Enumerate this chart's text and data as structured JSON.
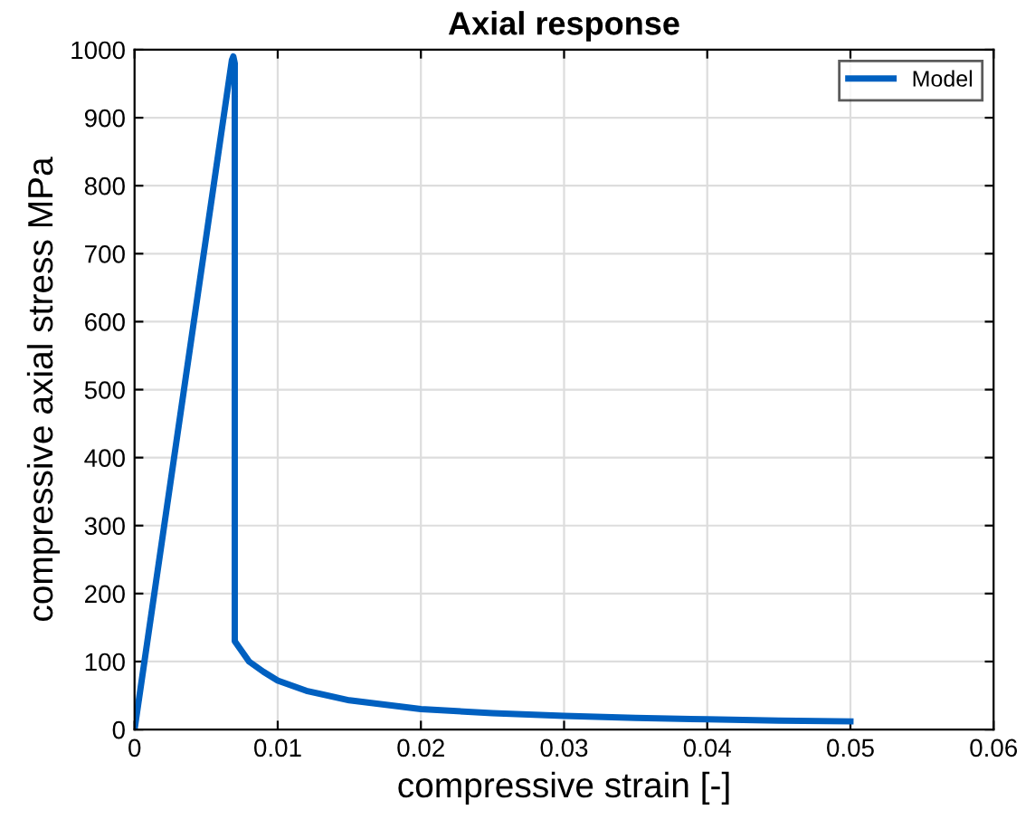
{
  "chart_data": {
    "type": "line",
    "title": "Axial response",
    "xlabel": "compressive strain [-]",
    "ylabel": "compressive axial stress MPa",
    "xlim": [
      0,
      0.06
    ],
    "ylim": [
      0,
      1000
    ],
    "xticks": [
      0,
      0.01,
      0.02,
      0.03,
      0.04,
      0.05,
      0.06
    ],
    "yticks": [
      0,
      100,
      200,
      300,
      400,
      500,
      600,
      700,
      800,
      900,
      1000
    ],
    "grid": true,
    "legend": "top right",
    "line_style": "solid",
    "marker": "none",
    "series": [
      {
        "name": "Model",
        "color": "#0060c0",
        "x": [
          0,
          0.0068,
          0.0069,
          0.007,
          0.007,
          0.0075,
          0.008,
          0.009,
          0.01,
          0.012,
          0.015,
          0.02,
          0.025,
          0.03,
          0.035,
          0.04,
          0.045,
          0.05
        ],
        "values": [
          0,
          985,
          990,
          980,
          130,
          115,
          100,
          85,
          72,
          57,
          43,
          30,
          24,
          20,
          17,
          15,
          13,
          12
        ]
      }
    ]
  }
}
